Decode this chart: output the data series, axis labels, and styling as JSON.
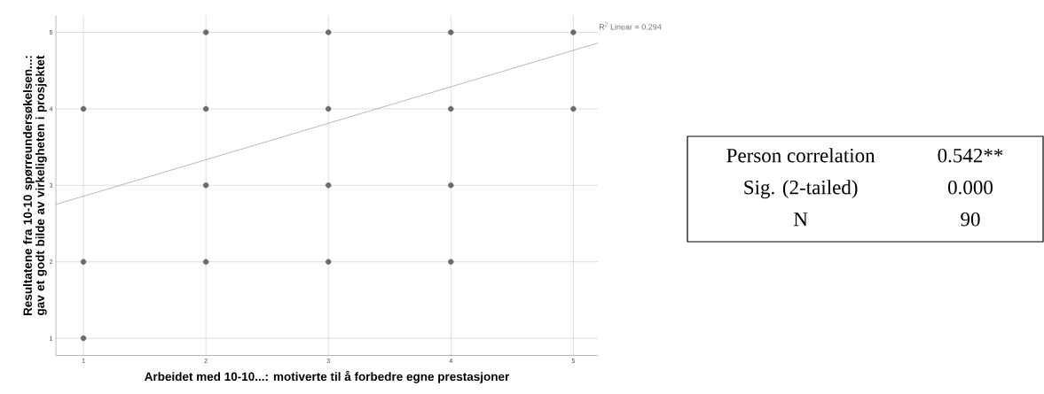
{
  "chart_data": [
    {
      "type": "scatter",
      "xlabel": "Arbeidet med 10-10...: motiverte til å forbedre egne prestasjoner",
      "ylabel": "Resultatene fra 10-10 spørreundersøkelsen...: gav et godt bilde av virkeligheten i prosjektet",
      "xlim": [
        0.775,
        5.2
      ],
      "ylim": [
        0.775,
        5.22
      ],
      "xticks": [
        1,
        2,
        3,
        4,
        5
      ],
      "yticks": [
        1,
        2,
        3,
        4,
        5
      ],
      "grid": true,
      "annotations": [
        "R$^{2}$ Linear = 0.294"
      ],
      "series": [
        {
          "type": "scatter",
          "marker": "circle",
          "color": "#6b6b6b",
          "x": [
            1,
            1,
            1,
            2,
            2,
            2,
            2,
            3,
            3,
            3,
            3,
            4,
            4,
            4,
            4,
            5,
            5
          ],
          "values": [
            1,
            2,
            4,
            2,
            3,
            4,
            5,
            2,
            3,
            4,
            5,
            2,
            3,
            4,
            5,
            4,
            5
          ]
        },
        {
          "type": "line",
          "marker": "none",
          "color": "#a6a6a6",
          "x": [
            0.775,
            5.2
          ],
          "values": [
            2.75,
            4.86
          ]
        }
      ]
    },
    {
      "type": "other",
      "annotations": [
        "Person correlation",
        "0.542**",
        "Sig. (2-tailed)",
        "0.000",
        "N",
        "90"
      ]
    }
  ]
}
